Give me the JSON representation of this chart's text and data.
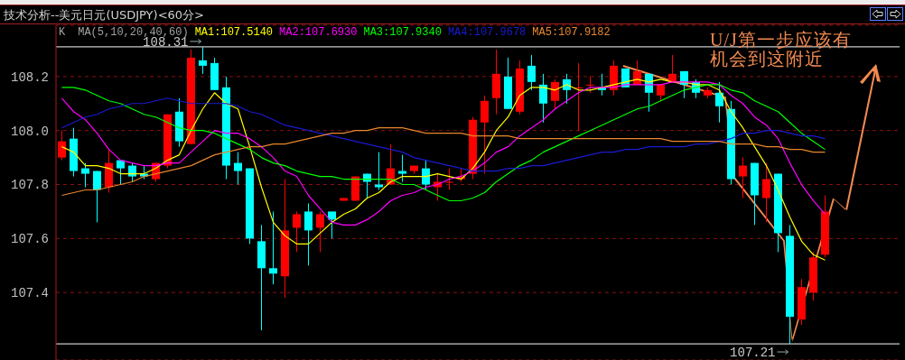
{
  "chart_data": {
    "type": "candlestick",
    "title": "技术分析--美元日元(USDJPY)<60分>",
    "legend_title": "MA(5,10,20,40,60)",
    "annotations": [
      "K",
      "U/J第一步应该有机会到这附近"
    ],
    "categories": [
      null,
      null,
      null,
      null,
      null,
      null,
      null,
      null,
      null,
      null,
      null,
      null,
      null,
      null,
      null,
      null,
      null,
      null,
      null,
      null,
      null,
      null,
      null,
      null,
      null,
      null,
      null,
      null,
      null,
      null,
      null,
      null,
      null,
      null,
      null,
      null,
      null,
      null,
      null,
      null,
      null,
      null,
      null,
      null,
      null,
      null,
      null,
      null,
      null,
      null,
      null,
      null,
      null,
      null,
      null,
      null,
      null,
      null,
      null,
      null,
      null,
      null,
      null,
      null,
      null,
      null
    ],
    "ohlc": [
      [
        107.9,
        108.0,
        107.89,
        107.96
      ],
      [
        107.97,
        108.01,
        107.83,
        107.85
      ],
      [
        107.86,
        107.88,
        107.79,
        107.84
      ],
      [
        107.85,
        107.85,
        107.66,
        107.78
      ],
      [
        107.79,
        107.93,
        107.77,
        107.88
      ],
      [
        107.89,
        107.89,
        107.8,
        107.86
      ],
      [
        107.87,
        107.88,
        107.81,
        107.83
      ],
      [
        107.84,
        107.87,
        107.82,
        107.83
      ],
      [
        107.82,
        107.88,
        107.81,
        107.88
      ],
      [
        107.87,
        108.06,
        107.86,
        108.06
      ],
      [
        108.07,
        108.12,
        107.94,
        107.96
      ],
      [
        107.95,
        108.3,
        107.95,
        108.27
      ],
      [
        108.26,
        108.31,
        108.21,
        108.24
      ],
      [
        108.25,
        108.27,
        108.15,
        108.15
      ],
      [
        108.16,
        108.2,
        107.82,
        107.87
      ],
      [
        107.88,
        107.92,
        107.8,
        107.85
      ],
      [
        107.86,
        107.86,
        107.58,
        107.6
      ],
      [
        107.59,
        107.65,
        107.26,
        107.49
      ],
      [
        107.49,
        107.7,
        107.43,
        107.47
      ],
      [
        107.46,
        107.82,
        107.38,
        107.63
      ],
      [
        107.64,
        107.7,
        107.55,
        107.69
      ],
      [
        107.7,
        107.73,
        107.5,
        107.63
      ],
      [
        107.64,
        107.7,
        107.55,
        107.69
      ],
      [
        107.7,
        107.7,
        107.6,
        107.67
      ],
      [
        107.74,
        107.75,
        107.74,
        107.75
      ],
      [
        107.74,
        107.83,
        107.74,
        107.83
      ],
      [
        107.84,
        107.84,
        107.75,
        107.81
      ],
      [
        107.8,
        107.92,
        107.78,
        107.79
      ],
      [
        107.8,
        107.95,
        107.8,
        107.86
      ],
      [
        107.85,
        107.91,
        107.81,
        107.84
      ],
      [
        107.85,
        107.87,
        107.84,
        107.87
      ],
      [
        107.86,
        107.89,
        107.78,
        107.8
      ],
      [
        107.79,
        107.84,
        107.74,
        107.81
      ],
      [
        107.81,
        107.86,
        107.78,
        107.81
      ],
      [
        107.82,
        107.86,
        107.81,
        107.83
      ],
      [
        107.84,
        108.05,
        107.82,
        108.04
      ],
      [
        108.03,
        108.13,
        107.84,
        108.11
      ],
      [
        108.12,
        108.3,
        108.06,
        108.21
      ],
      [
        108.2,
        108.27,
        108.08,
        108.08
      ],
      [
        108.07,
        108.26,
        108.06,
        108.23
      ],
      [
        108.24,
        108.28,
        108.15,
        108.18
      ],
      [
        108.17,
        108.21,
        108.03,
        108.1
      ],
      [
        108.11,
        108.19,
        108.08,
        108.18
      ],
      [
        108.19,
        108.21,
        108.1,
        108.15
      ],
      [
        108.16,
        108.25,
        108.0,
        108.16
      ],
      [
        108.17,
        108.2,
        108.14,
        108.17
      ],
      [
        108.16,
        108.21,
        108.13,
        108.15
      ],
      [
        108.15,
        108.26,
        108.13,
        108.24
      ],
      [
        108.23,
        108.23,
        108.16,
        108.16
      ],
      [
        108.17,
        108.26,
        108.17,
        108.22
      ],
      [
        108.21,
        108.21,
        108.07,
        108.14
      ],
      [
        108.13,
        108.17,
        108.11,
        108.17
      ],
      [
        108.18,
        108.28,
        108.18,
        108.21
      ],
      [
        108.22,
        108.22,
        108.12,
        108.17
      ],
      [
        108.18,
        108.19,
        108.12,
        108.14
      ],
      [
        108.13,
        108.16,
        108.12,
        108.15
      ],
      [
        108.14,
        108.18,
        108.03,
        108.09
      ],
      [
        108.08,
        108.11,
        107.8,
        107.82
      ],
      [
        107.83,
        107.9,
        107.75,
        107.87
      ],
      [
        107.88,
        107.88,
        107.65,
        107.76
      ],
      [
        107.75,
        107.88,
        107.66,
        107.82
      ],
      [
        107.84,
        107.84,
        107.55,
        107.62
      ],
      [
        107.61,
        107.65,
        107.21,
        107.31
      ],
      [
        107.3,
        107.45,
        107.28,
        107.42
      ],
      [
        107.4,
        107.55,
        107.37,
        107.53
      ],
      [
        107.54,
        107.76,
        107.53,
        107.7
      ]
    ],
    "colors": [
      "#ff0000",
      "#00ffff",
      "#00ffff",
      "#00ffff",
      "#ff0000",
      "#00ffff",
      "#00ffff",
      "#00ffff",
      "#ff0000",
      "#ff0000",
      "#00ffff",
      "#ff0000",
      "#00ffff",
      "#00ffff",
      "#00ffff",
      "#00ffff",
      "#00ffff",
      "#00ffff",
      "#00ffff",
      "#ff0000",
      "#ff0000",
      "#00ffff",
      "#ff0000",
      "#00ffff",
      "#ff0000",
      "#ff0000",
      "#00ffff",
      "#00ffff",
      "#ff0000",
      "#00ffff",
      "#ff0000",
      "#00ffff",
      "#ff0000",
      "#ff0000",
      "#ff0000",
      "#ff0000",
      "#ff0000",
      "#ff0000",
      "#00ffff",
      "#ff0000",
      "#00ffff",
      "#00ffff",
      "#ff0000",
      "#00ffff",
      "#ff0000",
      "#ff0000",
      "#00ffff",
      "#ff0000",
      "#00ffff",
      "#ff0000",
      "#00ffff",
      "#ff0000",
      "#ff0000",
      "#00ffff",
      "#00ffff",
      "#ff0000",
      "#00ffff",
      "#00ffff",
      "#ff0000",
      "#00ffff",
      "#ff0000",
      "#00ffff",
      "#00ffff",
      "#ff0000",
      "#ff0000",
      "#ff0000"
    ],
    "series": [
      {
        "type": "line",
        "name": "MA1:107.5140",
        "color": "#ffff00",
        "values": [
          107.94,
          107.92,
          107.87,
          107.87,
          107.86,
          107.84,
          107.84,
          107.84,
          107.86,
          107.89,
          107.91,
          108.0,
          108.08,
          108.14,
          108.1,
          108.08,
          107.94,
          107.79,
          107.66,
          107.61,
          107.58,
          107.58,
          107.62,
          107.66,
          107.69,
          107.71,
          107.75,
          107.77,
          107.81,
          107.83,
          107.83,
          107.83,
          107.84,
          107.83,
          107.82,
          107.86,
          107.92,
          108.0,
          108.05,
          108.13,
          108.16,
          108.16,
          108.15,
          108.17,
          108.15,
          108.15,
          108.16,
          108.17,
          108.18,
          108.19,
          108.18,
          108.19,
          108.18,
          108.18,
          108.17,
          108.17,
          108.15,
          108.07,
          108.01,
          107.94,
          107.87,
          107.78,
          107.68,
          107.59,
          107.54,
          107.52
        ]
      },
      {
        "type": "line",
        "name": "MA2:107.6930",
        "color": "#ff00ff",
        "values": [
          108.12,
          108.07,
          108.04,
          107.99,
          107.93,
          107.89,
          107.88,
          107.87,
          107.87,
          107.88,
          107.88,
          107.92,
          107.96,
          108.0,
          107.99,
          107.99,
          107.97,
          107.94,
          107.9,
          107.85,
          107.83,
          107.76,
          107.71,
          107.66,
          107.65,
          107.65,
          107.67,
          107.7,
          107.74,
          107.76,
          107.77,
          107.79,
          107.8,
          107.82,
          107.83,
          107.85,
          107.88,
          107.92,
          107.94,
          107.98,
          108.01,
          108.04,
          108.08,
          108.11,
          108.14,
          108.16,
          108.16,
          108.16,
          108.17,
          108.17,
          108.17,
          108.17,
          108.18,
          108.18,
          108.18,
          108.18,
          108.17,
          108.13,
          108.1,
          108.05,
          108.02,
          107.97,
          107.88,
          107.8,
          107.74,
          107.69
        ]
      },
      {
        "type": "line",
        "name": "MA3:107.9340",
        "color": "#00ff00",
        "values": [
          108.16,
          108.16,
          108.15,
          108.13,
          108.11,
          108.1,
          108.08,
          108.06,
          108.05,
          108.03,
          108.01,
          108.0,
          108.0,
          107.99,
          107.97,
          107.95,
          107.93,
          107.9,
          107.88,
          107.87,
          107.85,
          107.84,
          107.83,
          107.83,
          107.82,
          107.82,
          107.82,
          107.82,
          107.82,
          107.8,
          107.8,
          107.78,
          107.76,
          107.74,
          107.74,
          107.75,
          107.77,
          107.81,
          107.84,
          107.87,
          107.89,
          107.92,
          107.94,
          107.96,
          107.98,
          108.0,
          108.02,
          108.04,
          108.06,
          108.08,
          108.09,
          108.11,
          108.13,
          108.15,
          108.16,
          108.17,
          108.17,
          108.15,
          108.14,
          108.11,
          108.09,
          108.07,
          108.03,
          107.99,
          107.96,
          107.93
        ]
      },
      {
        "type": "line",
        "name": "MA4:107.9678",
        "color": "#1a1ad0",
        "values": [
          108.01,
          108.03,
          108.05,
          108.06,
          108.08,
          108.09,
          108.1,
          108.1,
          108.11,
          108.12,
          108.11,
          108.1,
          108.1,
          108.1,
          108.1,
          108.09,
          108.07,
          108.06,
          108.04,
          108.02,
          108.01,
          108.0,
          107.99,
          107.98,
          107.97,
          107.96,
          107.95,
          107.94,
          107.93,
          107.92,
          107.9,
          107.89,
          107.88,
          107.87,
          107.86,
          107.85,
          107.85,
          107.85,
          107.86,
          107.86,
          107.87,
          107.87,
          107.88,
          107.89,
          107.9,
          107.91,
          107.92,
          107.92,
          107.93,
          107.93,
          107.94,
          107.94,
          107.94,
          107.94,
          107.95,
          107.95,
          107.96,
          107.97,
          107.99,
          107.99,
          108.0,
          108.0,
          107.99,
          107.98,
          107.98,
          107.97
        ]
      },
      {
        "type": "line",
        "name": "MA5:107.9182",
        "color": "#e8862e",
        "values": [
          107.76,
          107.77,
          107.78,
          107.78,
          107.79,
          107.8,
          107.81,
          107.83,
          107.84,
          107.85,
          107.86,
          107.87,
          107.89,
          107.91,
          107.92,
          107.93,
          107.94,
          107.94,
          107.95,
          107.95,
          107.96,
          107.97,
          107.98,
          107.99,
          107.99,
          108.0,
          108.0,
          108.01,
          108.01,
          108.01,
          108.0,
          107.99,
          107.99,
          107.99,
          107.99,
          107.98,
          107.98,
          107.98,
          107.98,
          107.97,
          107.97,
          107.97,
          107.97,
          107.97,
          107.97,
          107.97,
          107.97,
          107.97,
          107.97,
          107.97,
          107.97,
          107.97,
          107.96,
          107.96,
          107.96,
          107.96,
          107.96,
          107.95,
          107.95,
          107.95,
          107.94,
          107.94,
          107.93,
          107.93,
          107.92,
          107.92
        ]
      }
    ],
    "marker": "none",
    "line_style": "solid",
    "ylim": [
      107.15,
      108.39
    ],
    "yticks": [
      {
        "value": 107.4,
        "label": "107.4"
      },
      {
        "value": 107.6,
        "label": "107.6"
      },
      {
        "value": 107.8,
        "label": "107.8"
      },
      {
        "value": 108.0,
        "label": "108.0"
      },
      {
        "value": 108.2,
        "label": "108.2"
      }
    ],
    "grid": "y",
    "legend": "top left",
    "tick_labels": "y",
    "ref_lines": [
      {
        "axis": "y",
        "value": 108.31,
        "label": "108.31",
        "color": "#c8c8c8"
      },
      {
        "axis": "y",
        "value": 107.21,
        "label": "107.21",
        "color": "#c8c8c8"
      }
    ]
  }
}
